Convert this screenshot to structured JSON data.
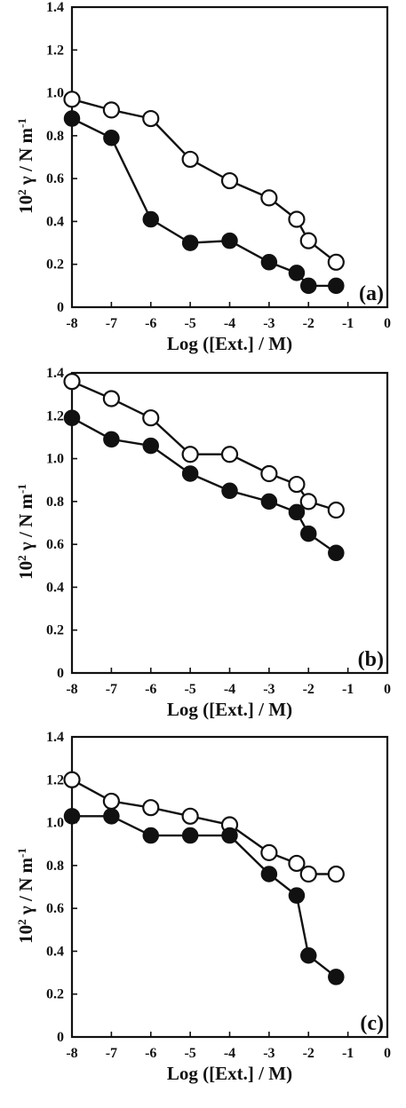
{
  "chart_data": [
    {
      "type": "line",
      "panel_label": "(a)",
      "xlabel": "Log ([Ext.] / M)",
      "ylabel_parts": [
        "10",
        "2",
        " γ / N m",
        "-1"
      ],
      "xlim": [
        -8,
        0
      ],
      "ylim": [
        0,
        1.4
      ],
      "xticks": [
        -8,
        -7,
        -6,
        -5,
        -4,
        -3,
        -2,
        -1,
        0
      ],
      "xtick_labels": [
        "-8",
        "-7",
        "-6",
        "-5",
        "-4",
        "-3",
        "-2",
        "-1",
        "0"
      ],
      "yticks": [
        0,
        0.2,
        0.4,
        0.6,
        0.8,
        1.0,
        1.2,
        1.4
      ],
      "ytick_labels": [
        "0",
        "0.2",
        "0.4",
        "0.6",
        "0.8",
        "1.0",
        "1.2",
        "1.4"
      ],
      "grid": false,
      "series": [
        {
          "marker": "open-circle",
          "x": [
            -8,
            -7,
            -6,
            -5,
            -4,
            -3,
            -2.3,
            -2,
            -1.3
          ],
          "y": [
            0.97,
            0.92,
            0.88,
            0.69,
            0.59,
            0.51,
            0.41,
            0.31,
            0.21
          ]
        },
        {
          "marker": "filled-circle",
          "x": [
            -8,
            -7,
            -6,
            -5,
            -4,
            -3,
            -2.3,
            -2,
            -1.3
          ],
          "y": [
            0.88,
            0.79,
            0.41,
            0.3,
            0.31,
            0.21,
            0.16,
            0.1,
            0.1
          ]
        }
      ]
    },
    {
      "type": "line",
      "panel_label": "(b)",
      "xlabel": "Log ([Ext.] / M)",
      "ylabel_parts": [
        "10",
        "2",
        " γ / N m",
        "-1"
      ],
      "xlim": [
        -8,
        0
      ],
      "ylim": [
        0,
        1.4
      ],
      "xticks": [
        -8,
        -7,
        -6,
        -5,
        -4,
        -3,
        -2,
        -1,
        0
      ],
      "xtick_labels": [
        "-8",
        "-7",
        "-6",
        "-5",
        "-4",
        "-3",
        "-2",
        "-1",
        "0"
      ],
      "yticks": [
        0,
        0.2,
        0.4,
        0.6,
        0.8,
        1.0,
        1.2,
        1.4
      ],
      "ytick_labels": [
        "0",
        "0.2",
        "0.4",
        "0.6",
        "0.8",
        "1.0",
        "1.2",
        "1.4"
      ],
      "grid": false,
      "series": [
        {
          "marker": "open-circle",
          "x": [
            -8,
            -7,
            -6,
            -5,
            -4,
            -3,
            -2.3,
            -2,
            -1.3
          ],
          "y": [
            1.36,
            1.28,
            1.19,
            1.02,
            1.02,
            0.93,
            0.88,
            0.8,
            0.76
          ]
        },
        {
          "marker": "filled-circle",
          "x": [
            -8,
            -7,
            -6,
            -5,
            -4,
            -3,
            -2.3,
            -2,
            -1.3
          ],
          "y": [
            1.19,
            1.09,
            1.06,
            0.93,
            0.85,
            0.8,
            0.75,
            0.65,
            0.56
          ]
        }
      ]
    },
    {
      "type": "line",
      "panel_label": "(c)",
      "xlabel": "Log ([Ext.] / M)",
      "ylabel_parts": [
        "10",
        "2",
        " γ / N m",
        "-1"
      ],
      "xlim": [
        -8,
        0
      ],
      "ylim": [
        0,
        1.4
      ],
      "xticks": [
        -8,
        -7,
        -6,
        -5,
        -4,
        -3,
        -2,
        -1,
        0
      ],
      "xtick_labels": [
        "-8",
        "-7",
        "-6",
        "-5",
        "-4",
        "-3",
        "-2",
        "-1",
        "0"
      ],
      "yticks": [
        0,
        0.2,
        0.4,
        0.6,
        0.8,
        1.0,
        1.2,
        1.4
      ],
      "ytick_labels": [
        "0",
        "0.2",
        "0.4",
        "0.6",
        "0.8",
        "1.0",
        "1.2",
        "1.4"
      ],
      "grid": false,
      "series": [
        {
          "marker": "open-circle",
          "x": [
            -8,
            -7,
            -6,
            -5,
            -4,
            -3,
            -2.3,
            -2,
            -1.3
          ],
          "y": [
            1.2,
            1.1,
            1.07,
            1.03,
            0.99,
            0.86,
            0.81,
            0.76,
            0.76
          ]
        },
        {
          "marker": "filled-circle",
          "x": [
            -8,
            -7,
            -6,
            -5,
            -4,
            -3,
            -2.3,
            -2,
            -1.3
          ],
          "y": [
            1.03,
            1.03,
            0.94,
            0.94,
            0.94,
            0.76,
            0.66,
            0.38,
            0.28
          ]
        }
      ]
    }
  ]
}
